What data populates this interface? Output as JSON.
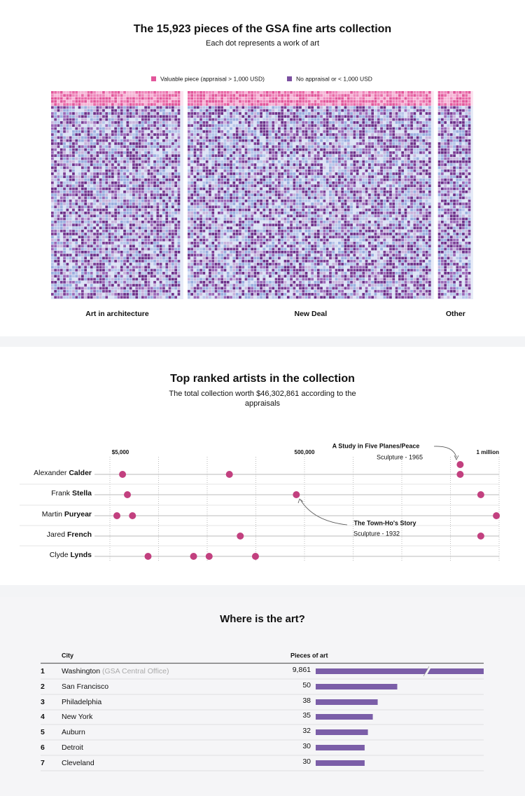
{
  "chart_data": [
    {
      "type": "waffle",
      "title": "The 15,923 pieces of the GSA fine arts collection",
      "subtitle": "Each dot represents a work of art",
      "categories": [
        "Art in architecture",
        "New Deal",
        "Other"
      ],
      "series": [
        {
          "name": "Valuable piece (appraisal > 1,000 USD)",
          "color": "#e2569b",
          "values": [
            356,
            663,
            95
          ]
        },
        {
          "name": "No appraisal or < 1,000 USD",
          "color": "#7b4fa0",
          "values": [
            4735,
            8815,
            1259
          ]
        }
      ]
    },
    {
      "type": "dot",
      "title": "Top ranked artists in the collection",
      "subtitle": "The total collection worth $46,302,861 according to the appraisals",
      "xlim": [
        0,
        1000000
      ],
      "xticks": [
        {
          "value": 5000,
          "label": "$5,000"
        },
        {
          "value": 500000,
          "label": "500,000"
        },
        {
          "value": 1000000,
          "label": "1 million"
        }
      ],
      "xgrid": [
        0,
        125000,
        250000,
        375000,
        500000,
        625000,
        750000,
        875000,
        1000000
      ],
      "color": "#c2407f",
      "series": [
        {
          "first": "Alexander",
          "last": "Calder",
          "values": [
            32500,
            307000,
            900000,
            900000
          ]
        },
        {
          "first": "Frank",
          "last": "Stella",
          "values": [
            45000,
            479000,
            953000
          ]
        },
        {
          "first": "Martin",
          "last": "Puryear",
          "values": [
            18000,
            58000,
            993000
          ]
        },
        {
          "first": "Jared",
          "last": "French",
          "values": [
            335000,
            953000
          ]
        },
        {
          "first": "Clyde",
          "last": "Lynds",
          "values": [
            98000,
            215000,
            255000,
            374000
          ]
        }
      ],
      "annotations": [
        {
          "title": "A Study in Five Planes/Peace",
          "subtitle": "Sculpture - 1965"
        },
        {
          "title": "The Town-Ho's Story",
          "subtitle": "Sculpture - 1932"
        }
      ]
    },
    {
      "type": "table-bar",
      "title": "Where is the art?",
      "columns": [
        "City",
        "Pieces of art"
      ],
      "xlim": [
        0,
        103
      ],
      "color": "#7b5ea8",
      "rows": [
        {
          "rank": 1,
          "city": "Washington",
          "note": "(GSA Central Office)",
          "value": 9861,
          "value_label": "9,861"
        },
        {
          "rank": 2,
          "city": "San Francisco",
          "value": 50
        },
        {
          "rank": 3,
          "city": "Philadelphia",
          "value": 38
        },
        {
          "rank": 4,
          "city": "New York",
          "value": 35
        },
        {
          "rank": 5,
          "city": "Auburn",
          "value": 32
        },
        {
          "rank": 6,
          "city": "Detroit",
          "value": 30
        },
        {
          "rank": 7,
          "city": "Cleveland",
          "value": 30
        }
      ]
    }
  ]
}
